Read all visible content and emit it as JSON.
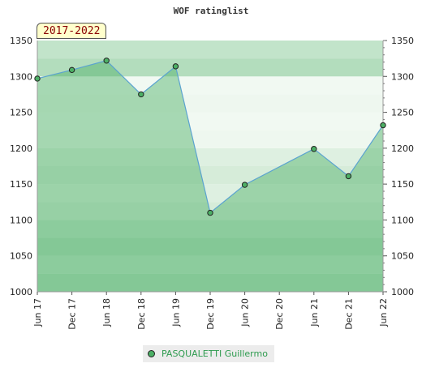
{
  "chart_data": {
    "type": "line",
    "title": "WOF ratinglist",
    "period_label": "2017-2022",
    "x": [
      "Jun 17",
      "Dec 17",
      "Jun 18",
      "Dec 18",
      "Jun 19",
      "Dec 19",
      "Jun 20",
      "Dec 20",
      "Jun 21",
      "Dec 21",
      "Jun 22"
    ],
    "series": [
      {
        "name": "PASQUALETTI Guillermo",
        "points": [
          {
            "x": "Jun 17",
            "y": 1297
          },
          {
            "x": "Dec 17",
            "y": 1309
          },
          {
            "x": "Jun 18",
            "y": 1322
          },
          {
            "x": "Dec 18",
            "y": 1275
          },
          {
            "x": "Jun 19",
            "y": 1314
          },
          {
            "x": "Dec 19",
            "y": 1110
          },
          {
            "x": "Jun 20",
            "y": 1149
          },
          {
            "x": "Jun 21",
            "y": 1199
          },
          {
            "x": "Dec 21",
            "y": 1161
          },
          {
            "x": "Jun 22",
            "y": 1232
          }
        ]
      }
    ],
    "y_ticks": [
      1000,
      1050,
      1100,
      1150,
      1200,
      1250,
      1300,
      1350
    ],
    "ylim": [
      1000,
      1350
    ],
    "grid": true,
    "legend_position": "bottom",
    "colors": {
      "line": "#5ba3d0",
      "fill": "#4caf65",
      "marker": "#4caf65",
      "band_light": "#eef7ef",
      "band_mid": "#d6ecd9",
      "band_dark": "#b3ddbd",
      "legend_text": "#2e9b4f",
      "badge_text": "#8b0000",
      "badge_bg": "#ffffcc"
    }
  }
}
